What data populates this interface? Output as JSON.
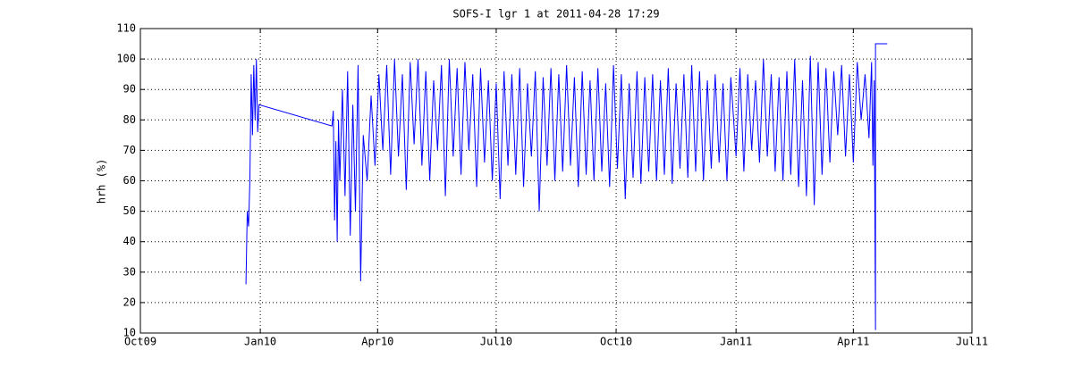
{
  "chart_data": {
    "type": "line",
    "title": "SOFS-I lgr 1 at 2011-04-28 17:29",
    "y_label": "hrh (%)",
    "x": [
      "2009-12-21",
      "2009-12-22",
      "2009-12-23",
      "2009-12-24",
      "2009-12-25",
      "2009-12-26",
      "2009-12-27",
      "2009-12-28",
      "2009-12-29",
      "2009-12-30",
      "2009-12-31",
      "2010-02-25",
      "2010-02-26",
      "2010-02-27",
      "2010-02-28",
      "2010-03-01",
      "2010-03-02",
      "2010-03-03",
      "2010-03-05",
      "2010-03-07",
      "2010-03-09",
      "2010-03-11",
      "2010-03-13",
      "2010-03-15",
      "2010-03-17",
      "2010-03-19",
      "2010-03-21",
      "2010-03-24",
      "2010-03-27",
      "2010-03-30",
      "2010-04-02",
      "2010-04-05",
      "2010-04-08",
      "2010-04-11",
      "2010-04-14",
      "2010-04-17",
      "2010-04-20",
      "2010-04-23",
      "2010-04-26",
      "2010-04-29",
      "2010-05-02",
      "2010-05-05",
      "2010-05-08",
      "2010-05-11",
      "2010-05-14",
      "2010-05-17",
      "2010-05-20",
      "2010-05-23",
      "2010-05-26",
      "2010-05-29",
      "2010-06-01",
      "2010-06-04",
      "2010-06-07",
      "2010-06-10",
      "2010-06-13",
      "2010-06-16",
      "2010-06-19",
      "2010-06-22",
      "2010-06-25",
      "2010-06-28",
      "2010-07-01",
      "2010-07-04",
      "2010-07-07",
      "2010-07-10",
      "2010-07-13",
      "2010-07-16",
      "2010-07-19",
      "2010-07-22",
      "2010-07-25",
      "2010-07-28",
      "2010-07-31",
      "2010-08-03",
      "2010-08-06",
      "2010-08-09",
      "2010-08-12",
      "2010-08-15",
      "2010-08-18",
      "2010-08-21",
      "2010-08-24",
      "2010-08-27",
      "2010-08-30",
      "2010-09-02",
      "2010-09-05",
      "2010-09-08",
      "2010-09-11",
      "2010-09-14",
      "2010-09-17",
      "2010-09-20",
      "2010-09-23",
      "2010-09-26",
      "2010-09-29",
      "2010-10-02",
      "2010-10-05",
      "2010-10-08",
      "2010-10-11",
      "2010-10-14",
      "2010-10-17",
      "2010-10-20",
      "2010-10-23",
      "2010-10-26",
      "2010-10-29",
      "2010-11-01",
      "2010-11-04",
      "2010-11-07",
      "2010-11-10",
      "2010-11-13",
      "2010-11-16",
      "2010-11-19",
      "2010-11-22",
      "2010-11-25",
      "2010-11-28",
      "2010-12-01",
      "2010-12-04",
      "2010-12-07",
      "2010-12-10",
      "2010-12-13",
      "2010-12-16",
      "2010-12-19",
      "2010-12-22",
      "2010-12-25",
      "2010-12-28",
      "2011-01-01",
      "2011-01-04",
      "2011-01-07",
      "2011-01-10",
      "2011-01-13",
      "2011-01-16",
      "2011-01-19",
      "2011-01-22",
      "2011-01-25",
      "2011-01-28",
      "2011-01-31",
      "2011-02-03",
      "2011-02-06",
      "2011-02-09",
      "2011-02-12",
      "2011-02-15",
      "2011-02-18",
      "2011-02-21",
      "2011-02-24",
      "2011-02-27",
      "2011-03-02",
      "2011-03-05",
      "2011-03-08",
      "2011-03-11",
      "2011-03-14",
      "2011-03-17",
      "2011-03-20",
      "2011-03-23",
      "2011-03-26",
      "2011-03-29",
      "2011-04-01",
      "2011-04-04",
      "2011-04-07",
      "2011-04-10",
      "2011-04-13",
      "2011-04-15",
      "2011-04-16",
      "2011-04-17",
      "2011-04-18",
      "2011-04-18",
      "2011-04-27"
    ],
    "series": [
      {
        "name": "hrh",
        "color": "#0000ff",
        "values": [
          26,
          50,
          45,
          60,
          95,
          75,
          98,
          80,
          100,
          76,
          85,
          78,
          83,
          47,
          73,
          40,
          80,
          60,
          90,
          55,
          96,
          42,
          85,
          50,
          98,
          27,
          75,
          60,
          88,
          65,
          95,
          70,
          98,
          62,
          100,
          68,
          95,
          57,
          99,
          72,
          100,
          65,
          96,
          60,
          93,
          70,
          98,
          55,
          100,
          68,
          97,
          62,
          99,
          70,
          95,
          58,
          97,
          66,
          93,
          60,
          92,
          54,
          96,
          65,
          95,
          62,
          97,
          58,
          92,
          68,
          96,
          50,
          94,
          65,
          97,
          60,
          95,
          63,
          98,
          65,
          94,
          58,
          96,
          62,
          93,
          60,
          97,
          63,
          92,
          58,
          98,
          64,
          95,
          54,
          92,
          61,
          96,
          59,
          94,
          63,
          95,
          60,
          93,
          62,
          97,
          59,
          92,
          64,
          95,
          61,
          98,
          63,
          96,
          60,
          93,
          64,
          95,
          66,
          92,
          60,
          94,
          68,
          97,
          63,
          95,
          70,
          93,
          66,
          100,
          68,
          95,
          63,
          94,
          60,
          96,
          62,
          100,
          58,
          93,
          55,
          101,
          52,
          99,
          62,
          97,
          66,
          96,
          75,
          98,
          68,
          95,
          66,
          99,
          80,
          95,
          74,
          99,
          65,
          93,
          11,
          105,
          105
        ]
      }
    ],
    "xlim": [
      "2009-10-01",
      "2011-07-01"
    ],
    "xticks": [
      {
        "value": "2009-10-01",
        "label": "Oct09"
      },
      {
        "value": "2010-01-01",
        "label": "Jan10"
      },
      {
        "value": "2010-04-01",
        "label": "Apr10"
      },
      {
        "value": "2010-07-01",
        "label": "Jul10"
      },
      {
        "value": "2010-10-01",
        "label": "Oct10"
      },
      {
        "value": "2011-01-01",
        "label": "Jan11"
      },
      {
        "value": "2011-04-01",
        "label": "Apr11"
      },
      {
        "value": "2011-07-01",
        "label": "Jul11"
      }
    ],
    "ylim": [
      10,
      110
    ],
    "yticks": [
      10,
      20,
      30,
      40,
      50,
      60,
      70,
      80,
      90,
      100,
      110
    ],
    "grid": true
  }
}
